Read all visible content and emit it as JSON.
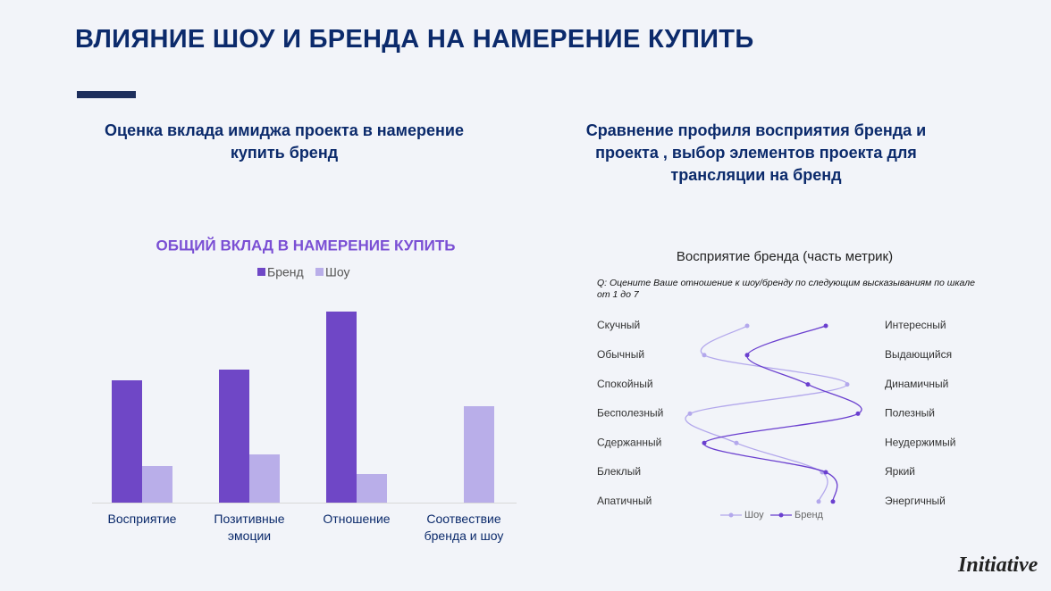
{
  "header": {
    "title": "ВЛИЯНИЕ ШОУ И БРЕНДА НА НАМЕРЕНИЕ КУПИТЬ"
  },
  "left_heading": "Оценка вклада имиджа проекта в намерение купить бренд",
  "right_heading": "Сравнение профиля восприятия бренда и проекта , выбор элементов проекта для трансляции на бренд",
  "chart_data": [
    {
      "type": "bar",
      "title": "ОБЩИЙ ВКЛАД В НАМЕРЕНИЕ КУПИТЬ",
      "categories": [
        "Восприятие",
        "Позитивные\nэмоции",
        "Отношение",
        "Соотвествие\nбренда и шоу"
      ],
      "series": [
        {
          "name": "Бренд",
          "color": "#6f47c6",
          "values": [
            137,
            149,
            214,
            null
          ]
        },
        {
          "name": "Шоу",
          "color": "#b9aee9",
          "values": [
            41,
            54,
            32,
            108
          ]
        }
      ],
      "ylim": [
        0,
        220
      ]
    },
    {
      "type": "line",
      "orientation": "vertical",
      "title": "Восприятие бренда (часть метрик)",
      "question": "Q: Оцените Ваше отношение к шоу/бренду по следующим высказываниям по шкале от  1 до 7",
      "categories": [
        "Скучный",
        "Обычный",
        "Спокойный",
        "Бесполезный",
        "Сдержанный",
        "Блеклый",
        "Апатичный"
      ],
      "right_categories": [
        "Интересный",
        "Выдающийся",
        "Динамичный",
        "Полезный",
        "Неудержимый",
        "Яркий",
        "Энергичный"
      ],
      "series": [
        {
          "name": "Шоу",
          "color": "#b3a8ec",
          "values": [
            3.4,
            2.2,
            6.2,
            1.8,
            3.1,
            5.5,
            5.4
          ]
        },
        {
          "name": "Бренд",
          "color": "#6a3fcf",
          "values": [
            5.6,
            3.4,
            5.1,
            6.5,
            2.2,
            5.6,
            5.8
          ]
        }
      ],
      "xlim": [
        1,
        7
      ]
    }
  ],
  "logo": "Initiative"
}
